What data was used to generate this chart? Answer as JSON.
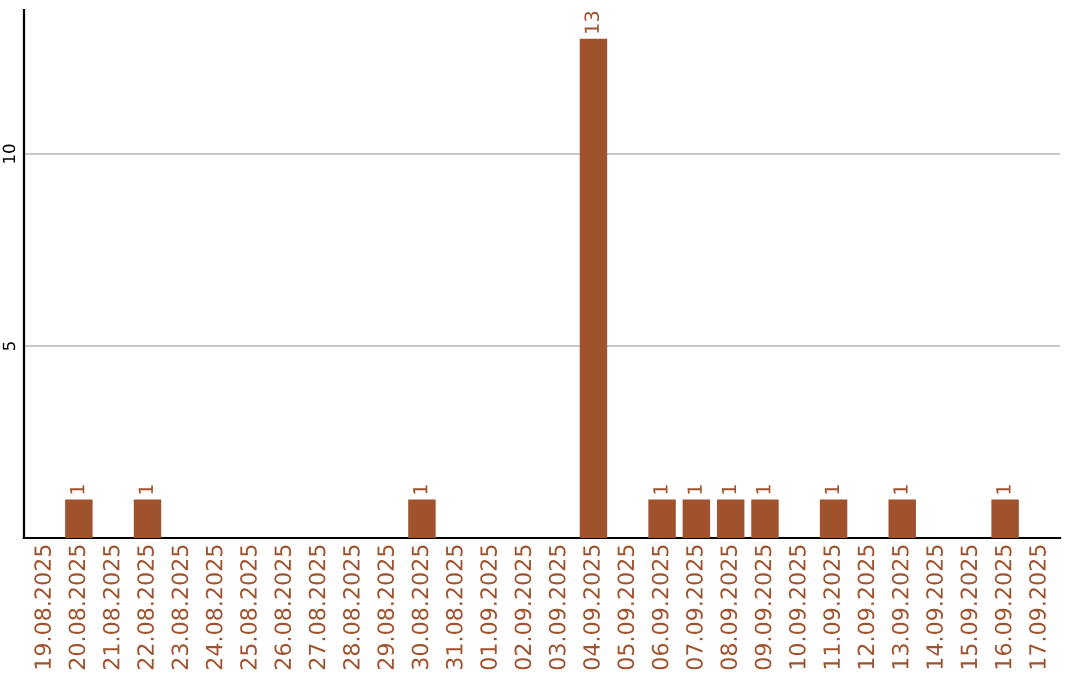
{
  "chart_data": {
    "type": "bar",
    "categories": [
      "19.08.2025",
      "20.08.2025",
      "21.08.2025",
      "22.08.2025",
      "23.08.2025",
      "24.08.2025",
      "25.08.2025",
      "26.08.2025",
      "27.08.2025",
      "28.08.2025",
      "29.08.2025",
      "30.08.2025",
      "31.08.2025",
      "01.09.2025",
      "02.09.2025",
      "03.09.2025",
      "04.09.2025",
      "05.09.2025",
      "06.09.2025",
      "07.09.2025",
      "08.09.2025",
      "09.09.2025",
      "10.09.2025",
      "11.09.2025",
      "12.09.2025",
      "13.09.2025",
      "14.09.2025",
      "15.09.2025",
      "16.09.2025",
      "17.09.2025"
    ],
    "values": [
      0,
      1,
      0,
      1,
      0,
      0,
      0,
      0,
      0,
      0,
      0,
      1,
      0,
      0,
      0,
      0,
      13,
      0,
      1,
      1,
      1,
      1,
      0,
      1,
      0,
      1,
      0,
      0,
      1,
      0
    ],
    "value_labels": [
      null,
      "1",
      null,
      "1",
      null,
      null,
      null,
      null,
      null,
      null,
      null,
      "1",
      null,
      null,
      null,
      null,
      "13",
      null,
      "1",
      "1",
      "1",
      "1",
      null,
      "1",
      null,
      "1",
      null,
      null,
      "1",
      null
    ],
    "color": "#a0522d",
    "ylim": [
      0,
      13.75
    ],
    "yticks": [
      5,
      10
    ],
    "grid": "y"
  }
}
